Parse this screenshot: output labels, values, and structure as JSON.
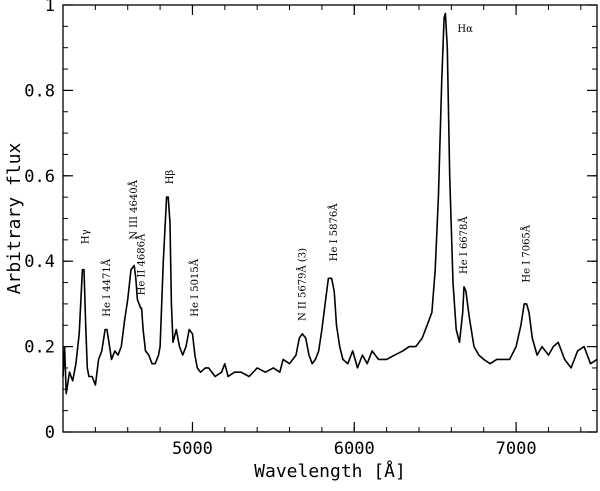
{
  "chart_data": {
    "type": "line",
    "title": "",
    "xlabel": "Wavelength [Å]",
    "ylabel": "Arbitrary flux",
    "xlim": [
      4200,
      7500
    ],
    "ylim": [
      0,
      1
    ],
    "xticks": [
      5000,
      6000,
      7000
    ],
    "xtick_labels": [
      "5000",
      "6000",
      "7000"
    ],
    "yticks": [
      0,
      0.2,
      0.4,
      0.6,
      0.8,
      1
    ],
    "ytick_labels": [
      "0",
      "0.2",
      "0.4",
      "0.6",
      "0.8",
      "1"
    ],
    "grid": false,
    "series": [
      {
        "x": [
          4200,
          4210,
          4220,
          4240,
          4260,
          4280,
          4300,
          4320,
          4330,
          4340,
          4350,
          4360,
          4380,
          4400,
          4420,
          4440,
          4460,
          4471,
          4480,
          4500,
          4520,
          4540,
          4560,
          4580,
          4600,
          4620,
          4640,
          4650,
          4660,
          4670,
          4680,
          4686,
          4695,
          4710,
          4730,
          4750,
          4770,
          4790,
          4800,
          4820,
          4840,
          4850,
          4861,
          4870,
          4880,
          4900,
          4920,
          4940,
          4960,
          4980,
          5000,
          5015,
          5030,
          5050,
          5080,
          5100,
          5140,
          5180,
          5200,
          5220,
          5260,
          5300,
          5350,
          5400,
          5450,
          5500,
          5540,
          5560,
          5600,
          5640,
          5660,
          5679,
          5700,
          5720,
          5740,
          5760,
          5780,
          5800,
          5820,
          5840,
          5860,
          5876,
          5890,
          5910,
          5930,
          5960,
          5990,
          6020,
          6050,
          6080,
          6110,
          6150,
          6200,
          6250,
          6300,
          6340,
          6380,
          6420,
          6450,
          6480,
          6500,
          6520,
          6540,
          6555,
          6563,
          6575,
          6590,
          6610,
          6630,
          6650,
          6670,
          6678,
          6690,
          6710,
          6740,
          6770,
          6800,
          6840,
          6880,
          6920,
          6960,
          7000,
          7030,
          7050,
          7065,
          7080,
          7100,
          7130,
          7160,
          7200,
          7230,
          7260,
          7300,
          7340,
          7380,
          7420,
          7460,
          7500
        ],
        "y": [
          0.13,
          0.2,
          0.09,
          0.14,
          0.12,
          0.16,
          0.23,
          0.38,
          0.38,
          0.25,
          0.15,
          0.13,
          0.13,
          0.11,
          0.17,
          0.19,
          0.24,
          0.24,
          0.22,
          0.17,
          0.19,
          0.18,
          0.2,
          0.26,
          0.31,
          0.38,
          0.39,
          0.36,
          0.31,
          0.3,
          0.29,
          0.29,
          0.24,
          0.19,
          0.18,
          0.16,
          0.16,
          0.18,
          0.2,
          0.4,
          0.55,
          0.55,
          0.49,
          0.3,
          0.21,
          0.24,
          0.2,
          0.18,
          0.2,
          0.24,
          0.23,
          0.18,
          0.15,
          0.14,
          0.15,
          0.15,
          0.13,
          0.14,
          0.16,
          0.13,
          0.14,
          0.14,
          0.13,
          0.15,
          0.14,
          0.15,
          0.14,
          0.17,
          0.16,
          0.18,
          0.22,
          0.23,
          0.22,
          0.18,
          0.16,
          0.17,
          0.19,
          0.24,
          0.3,
          0.36,
          0.36,
          0.33,
          0.25,
          0.2,
          0.17,
          0.16,
          0.19,
          0.15,
          0.18,
          0.16,
          0.19,
          0.17,
          0.17,
          0.18,
          0.19,
          0.2,
          0.2,
          0.22,
          0.25,
          0.28,
          0.38,
          0.55,
          0.82,
          0.97,
          0.98,
          0.9,
          0.6,
          0.35,
          0.24,
          0.21,
          0.28,
          0.34,
          0.33,
          0.27,
          0.2,
          0.18,
          0.17,
          0.16,
          0.17,
          0.17,
          0.17,
          0.2,
          0.25,
          0.3,
          0.3,
          0.28,
          0.22,
          0.18,
          0.2,
          0.18,
          0.2,
          0.21,
          0.17,
          0.15,
          0.19,
          0.2,
          0.16,
          0.17
        ]
      }
    ],
    "annotations": [
      {
        "text": "Hγ",
        "x": 4340,
        "y": 0.44
      },
      {
        "text": "He I 4471Å",
        "x": 4471,
        "y": 0.27
      },
      {
        "text": "N III 4640Å",
        "x": 4640,
        "y": 0.45
      },
      {
        "text": "He II 4686Å",
        "x": 4686,
        "y": 0.32
      },
      {
        "text": "Hβ",
        "x": 4861,
        "y": 0.58
      },
      {
        "text": "He I 5015Å",
        "x": 5015,
        "y": 0.27
      },
      {
        "text": "N II 5679Å (3)",
        "x": 5679,
        "y": 0.26
      },
      {
        "text": "He I 5876Å",
        "x": 5876,
        "y": 0.4
      },
      {
        "text": "Hα",
        "x": 6563,
        "y": 0.96
      },
      {
        "text": "He I 6678Å",
        "x": 6678,
        "y": 0.37
      },
      {
        "text": "He I 7065Å",
        "x": 7065,
        "y": 0.35
      }
    ]
  }
}
